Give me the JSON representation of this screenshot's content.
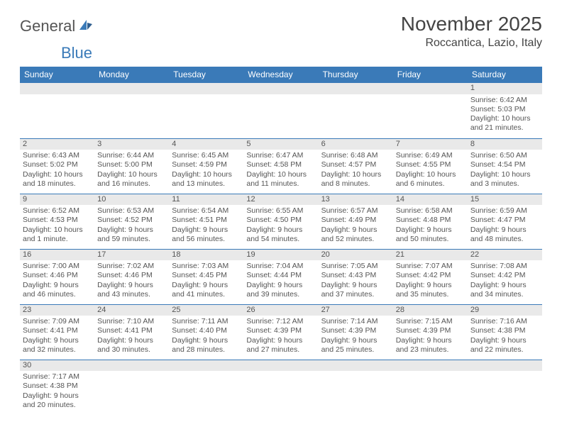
{
  "logo": {
    "text1": "General",
    "text2": "Blue"
  },
  "title": "November 2025",
  "location": "Roccantica, Lazio, Italy",
  "colors": {
    "header_bg": "#3a7ab8",
    "header_fg": "#ffffff",
    "daynum_bg": "#e9e9e9",
    "border": "#3a7ab8",
    "text": "#555555"
  },
  "weekdays": [
    "Sunday",
    "Monday",
    "Tuesday",
    "Wednesday",
    "Thursday",
    "Friday",
    "Saturday"
  ],
  "weeks": [
    [
      {
        "n": "",
        "sr": "",
        "ss": "",
        "dl": ""
      },
      {
        "n": "",
        "sr": "",
        "ss": "",
        "dl": ""
      },
      {
        "n": "",
        "sr": "",
        "ss": "",
        "dl": ""
      },
      {
        "n": "",
        "sr": "",
        "ss": "",
        "dl": ""
      },
      {
        "n": "",
        "sr": "",
        "ss": "",
        "dl": ""
      },
      {
        "n": "",
        "sr": "",
        "ss": "",
        "dl": ""
      },
      {
        "n": "1",
        "sr": "Sunrise: 6:42 AM",
        "ss": "Sunset: 5:03 PM",
        "dl": "Daylight: 10 hours and 21 minutes."
      }
    ],
    [
      {
        "n": "2",
        "sr": "Sunrise: 6:43 AM",
        "ss": "Sunset: 5:02 PM",
        "dl": "Daylight: 10 hours and 18 minutes."
      },
      {
        "n": "3",
        "sr": "Sunrise: 6:44 AM",
        "ss": "Sunset: 5:00 PM",
        "dl": "Daylight: 10 hours and 16 minutes."
      },
      {
        "n": "4",
        "sr": "Sunrise: 6:45 AM",
        "ss": "Sunset: 4:59 PM",
        "dl": "Daylight: 10 hours and 13 minutes."
      },
      {
        "n": "5",
        "sr": "Sunrise: 6:47 AM",
        "ss": "Sunset: 4:58 PM",
        "dl": "Daylight: 10 hours and 11 minutes."
      },
      {
        "n": "6",
        "sr": "Sunrise: 6:48 AM",
        "ss": "Sunset: 4:57 PM",
        "dl": "Daylight: 10 hours and 8 minutes."
      },
      {
        "n": "7",
        "sr": "Sunrise: 6:49 AM",
        "ss": "Sunset: 4:55 PM",
        "dl": "Daylight: 10 hours and 6 minutes."
      },
      {
        "n": "8",
        "sr": "Sunrise: 6:50 AM",
        "ss": "Sunset: 4:54 PM",
        "dl": "Daylight: 10 hours and 3 minutes."
      }
    ],
    [
      {
        "n": "9",
        "sr": "Sunrise: 6:52 AM",
        "ss": "Sunset: 4:53 PM",
        "dl": "Daylight: 10 hours and 1 minute."
      },
      {
        "n": "10",
        "sr": "Sunrise: 6:53 AM",
        "ss": "Sunset: 4:52 PM",
        "dl": "Daylight: 9 hours and 59 minutes."
      },
      {
        "n": "11",
        "sr": "Sunrise: 6:54 AM",
        "ss": "Sunset: 4:51 PM",
        "dl": "Daylight: 9 hours and 56 minutes."
      },
      {
        "n": "12",
        "sr": "Sunrise: 6:55 AM",
        "ss": "Sunset: 4:50 PM",
        "dl": "Daylight: 9 hours and 54 minutes."
      },
      {
        "n": "13",
        "sr": "Sunrise: 6:57 AM",
        "ss": "Sunset: 4:49 PM",
        "dl": "Daylight: 9 hours and 52 minutes."
      },
      {
        "n": "14",
        "sr": "Sunrise: 6:58 AM",
        "ss": "Sunset: 4:48 PM",
        "dl": "Daylight: 9 hours and 50 minutes."
      },
      {
        "n": "15",
        "sr": "Sunrise: 6:59 AM",
        "ss": "Sunset: 4:47 PM",
        "dl": "Daylight: 9 hours and 48 minutes."
      }
    ],
    [
      {
        "n": "16",
        "sr": "Sunrise: 7:00 AM",
        "ss": "Sunset: 4:46 PM",
        "dl": "Daylight: 9 hours and 46 minutes."
      },
      {
        "n": "17",
        "sr": "Sunrise: 7:02 AM",
        "ss": "Sunset: 4:46 PM",
        "dl": "Daylight: 9 hours and 43 minutes."
      },
      {
        "n": "18",
        "sr": "Sunrise: 7:03 AM",
        "ss": "Sunset: 4:45 PM",
        "dl": "Daylight: 9 hours and 41 minutes."
      },
      {
        "n": "19",
        "sr": "Sunrise: 7:04 AM",
        "ss": "Sunset: 4:44 PM",
        "dl": "Daylight: 9 hours and 39 minutes."
      },
      {
        "n": "20",
        "sr": "Sunrise: 7:05 AM",
        "ss": "Sunset: 4:43 PM",
        "dl": "Daylight: 9 hours and 37 minutes."
      },
      {
        "n": "21",
        "sr": "Sunrise: 7:07 AM",
        "ss": "Sunset: 4:42 PM",
        "dl": "Daylight: 9 hours and 35 minutes."
      },
      {
        "n": "22",
        "sr": "Sunrise: 7:08 AM",
        "ss": "Sunset: 4:42 PM",
        "dl": "Daylight: 9 hours and 34 minutes."
      }
    ],
    [
      {
        "n": "23",
        "sr": "Sunrise: 7:09 AM",
        "ss": "Sunset: 4:41 PM",
        "dl": "Daylight: 9 hours and 32 minutes."
      },
      {
        "n": "24",
        "sr": "Sunrise: 7:10 AM",
        "ss": "Sunset: 4:41 PM",
        "dl": "Daylight: 9 hours and 30 minutes."
      },
      {
        "n": "25",
        "sr": "Sunrise: 7:11 AM",
        "ss": "Sunset: 4:40 PM",
        "dl": "Daylight: 9 hours and 28 minutes."
      },
      {
        "n": "26",
        "sr": "Sunrise: 7:12 AM",
        "ss": "Sunset: 4:39 PM",
        "dl": "Daylight: 9 hours and 27 minutes."
      },
      {
        "n": "27",
        "sr": "Sunrise: 7:14 AM",
        "ss": "Sunset: 4:39 PM",
        "dl": "Daylight: 9 hours and 25 minutes."
      },
      {
        "n": "28",
        "sr": "Sunrise: 7:15 AM",
        "ss": "Sunset: 4:39 PM",
        "dl": "Daylight: 9 hours and 23 minutes."
      },
      {
        "n": "29",
        "sr": "Sunrise: 7:16 AM",
        "ss": "Sunset: 4:38 PM",
        "dl": "Daylight: 9 hours and 22 minutes."
      }
    ],
    [
      {
        "n": "30",
        "sr": "Sunrise: 7:17 AM",
        "ss": "Sunset: 4:38 PM",
        "dl": "Daylight: 9 hours and 20 minutes."
      },
      {
        "n": "",
        "sr": "",
        "ss": "",
        "dl": ""
      },
      {
        "n": "",
        "sr": "",
        "ss": "",
        "dl": ""
      },
      {
        "n": "",
        "sr": "",
        "ss": "",
        "dl": ""
      },
      {
        "n": "",
        "sr": "",
        "ss": "",
        "dl": ""
      },
      {
        "n": "",
        "sr": "",
        "ss": "",
        "dl": ""
      },
      {
        "n": "",
        "sr": "",
        "ss": "",
        "dl": ""
      }
    ]
  ]
}
